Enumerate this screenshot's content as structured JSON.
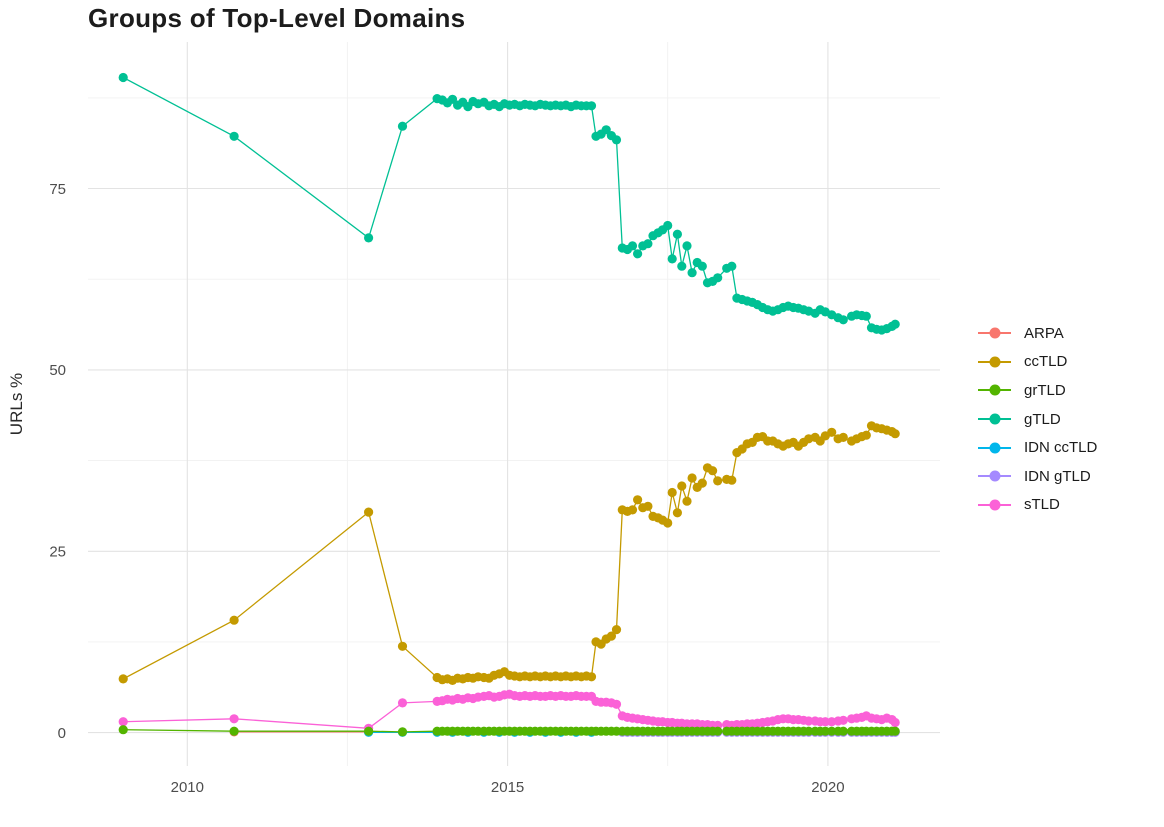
{
  "chart_data": {
    "type": "scatter",
    "title": "Groups of Top-Level Domains",
    "xlabel": "",
    "ylabel": "URLs %",
    "x_ticks": [
      2010,
      2015,
      2020
    ],
    "y_ticks": [
      0,
      25,
      50,
      75
    ],
    "minor_x": [
      2012.5,
      2017.5
    ],
    "minor_y": [
      12.5,
      37.5,
      62.5,
      87.5
    ],
    "xlim": [
      2008.45,
      2021.75
    ],
    "ylim": [
      -4.6,
      95.2
    ],
    "grid": true,
    "legend_position": "right",
    "colors": {
      "grid_major": "#e3e3e3",
      "grid_minor": "#f1f1f1",
      "tick_text": "#4d4d4d",
      "title_text": "#1c1c1c",
      "background": "#ffffff"
    },
    "draw_order": [
      "ARPA",
      "IDN ccTLD",
      "IDN gTLD",
      "ccTLD",
      "gTLD",
      "sTLD",
      "grTLD"
    ],
    "x_main": [
      2009.0,
      2010.73,
      2012.83,
      2013.36,
      2013.9,
      2013.98,
      2014.06,
      2014.14,
      2014.22,
      2014.3,
      2014.38,
      2014.46,
      2014.54,
      2014.63,
      2014.71,
      2014.79,
      2014.87,
      2014.95,
      2015.03,
      2015.11,
      2015.19,
      2015.27,
      2015.35,
      2015.43,
      2015.51,
      2015.59,
      2015.67,
      2015.75,
      2015.83,
      2015.91,
      2015.99,
      2016.07,
      2016.15,
      2016.23,
      2016.31,
      2016.38,
      2016.46,
      2016.54,
      2016.62,
      2016.7,
      2016.79,
      2016.87,
      2016.95,
      2017.03,
      2017.11,
      2017.19,
      2017.27,
      2017.35,
      2017.42,
      2017.5,
      2017.57,
      2017.65,
      2017.72,
      2017.8,
      2017.88,
      2017.96,
      2018.04,
      2018.12,
      2018.2,
      2018.28,
      2018.42,
      2018.5,
      2018.58,
      2018.66,
      2018.74,
      2018.82,
      2018.9,
      2018.98,
      2019.06,
      2019.14,
      2019.22,
      2019.3,
      2019.38,
      2019.46,
      2019.54,
      2019.62,
      2019.7,
      2019.8,
      2019.88,
      2019.96,
      2020.06,
      2020.16,
      2020.24,
      2020.37,
      2020.45,
      2020.53,
      2020.6,
      2020.68,
      2020.76,
      2020.84,
      2020.92,
      2021.0,
      2021.05
    ],
    "series": [
      {
        "name": "ARPA",
        "color": "#F8766D",
        "x": [
          2010.73,
          2012.83
        ],
        "y": [
          0.1,
          0.1
        ]
      },
      {
        "name": "ccTLD",
        "color": "#C49A00",
        "x_slice": [
          0,
          93
        ],
        "y": [
          7.4,
          15.5,
          30.4,
          11.9,
          7.6,
          7.3,
          7.4,
          7.2,
          7.5,
          7.4,
          7.6,
          7.5,
          7.7,
          7.6,
          7.5,
          7.9,
          8.1,
          8.4,
          7.9,
          7.8,
          7.7,
          7.8,
          7.7,
          7.8,
          7.7,
          7.8,
          7.7,
          7.8,
          7.7,
          7.8,
          7.7,
          7.8,
          7.7,
          7.8,
          7.7,
          12.5,
          12.2,
          12.9,
          13.3,
          14.2,
          30.7,
          30.5,
          30.7,
          32.1,
          31.0,
          31.2,
          29.8,
          29.6,
          29.3,
          28.9,
          33.1,
          30.3,
          34.0,
          31.9,
          35.1,
          33.8,
          34.4,
          36.5,
          36.1,
          34.7,
          34.9,
          34.8,
          38.6,
          39.1,
          39.8,
          40.0,
          40.7,
          40.8,
          40.2,
          40.2,
          39.8,
          39.5,
          39.8,
          40.0,
          39.5,
          40.0,
          40.5,
          40.7,
          40.2,
          40.9,
          41.4,
          40.5,
          40.7,
          40.2,
          40.5,
          40.8,
          41.0,
          42.3,
          42.0,
          41.9,
          41.7,
          41.5,
          41.2
        ]
      },
      {
        "name": "grTLD",
        "color": "#53B400",
        "x_slice": [
          0,
          93
        ],
        "y": [
          0.4,
          0.2,
          0.2,
          0.1,
          0.2,
          0.2,
          0.2,
          0.2,
          0.2,
          0.2,
          0.2,
          0.2,
          0.2,
          0.2,
          0.2,
          0.2,
          0.2,
          0.2,
          0.2,
          0.2,
          0.2,
          0.2,
          0.2,
          0.2,
          0.2,
          0.2,
          0.2,
          0.2,
          0.2,
          0.2,
          0.2,
          0.2,
          0.2,
          0.2,
          0.2,
          0.2,
          0.2,
          0.2,
          0.2,
          0.2,
          0.2,
          0.2,
          0.2,
          0.2,
          0.2,
          0.2,
          0.2,
          0.2,
          0.2,
          0.2,
          0.2,
          0.2,
          0.2,
          0.2,
          0.2,
          0.2,
          0.2,
          0.2,
          0.2,
          0.2,
          0.2,
          0.2,
          0.2,
          0.2,
          0.2,
          0.2,
          0.2,
          0.2,
          0.2,
          0.2,
          0.2,
          0.2,
          0.2,
          0.2,
          0.2,
          0.2,
          0.2,
          0.2,
          0.2,
          0.2,
          0.2,
          0.2,
          0.2,
          0.2,
          0.2,
          0.2,
          0.2,
          0.2,
          0.2,
          0.2,
          0.2,
          0.2,
          0.2
        ]
      },
      {
        "name": "gTLD",
        "color": "#00C094",
        "x_slice": [
          0,
          93
        ],
        "y": [
          90.3,
          82.2,
          68.2,
          83.6,
          87.4,
          87.2,
          86.8,
          87.3,
          86.5,
          86.9,
          86.3,
          87.0,
          86.7,
          86.9,
          86.4,
          86.6,
          86.3,
          86.7,
          86.5,
          86.6,
          86.4,
          86.6,
          86.5,
          86.4,
          86.6,
          86.5,
          86.4,
          86.5,
          86.4,
          86.5,
          86.3,
          86.5,
          86.4,
          86.4,
          86.4,
          82.2,
          82.5,
          83.1,
          82.3,
          81.7,
          66.8,
          66.6,
          67.1,
          66.0,
          67.1,
          67.4,
          68.5,
          68.9,
          69.3,
          69.9,
          65.3,
          68.7,
          64.3,
          67.1,
          63.4,
          64.8,
          64.3,
          62.0,
          62.2,
          62.7,
          64.0,
          64.3,
          59.9,
          59.7,
          59.5,
          59.3,
          59.0,
          58.6,
          58.3,
          58.1,
          58.3,
          58.6,
          58.8,
          58.6,
          58.5,
          58.3,
          58.1,
          57.8,
          58.3,
          58.0,
          57.6,
          57.2,
          56.9,
          57.4,
          57.6,
          57.5,
          57.4,
          55.8,
          55.6,
          55.5,
          55.7,
          56.0,
          56.3
        ]
      },
      {
        "name": "IDN ccTLD",
        "color": "#00B6EB",
        "x": [
          2012.83,
          2013.36,
          2013.9,
          2014.14,
          2014.38,
          2014.63,
          2014.87,
          2015.11,
          2015.35,
          2015.59,
          2015.83,
          2016.07,
          2016.31
        ],
        "y_fill": 0.05
      },
      {
        "name": "IDN gTLD",
        "color": "#A58AFF",
        "x_slice": [
          40,
          93
        ],
        "y_fill": 0.05
      },
      {
        "name": "sTLD",
        "color": "#FB61D7",
        "x_slice": [
          0,
          93
        ],
        "y": [
          1.5,
          1.9,
          0.6,
          4.1,
          4.3,
          4.4,
          4.6,
          4.5,
          4.7,
          4.6,
          4.8,
          4.7,
          4.9,
          5.0,
          5.1,
          4.9,
          5.0,
          5.2,
          5.3,
          5.1,
          5.0,
          5.1,
          5.0,
          5.1,
          5.0,
          5.0,
          5.1,
          5.0,
          5.1,
          5.0,
          5.0,
          5.1,
          5.0,
          5.0,
          5.0,
          4.3,
          4.2,
          4.2,
          4.1,
          3.9,
          2.3,
          2.1,
          2.0,
          1.9,
          1.8,
          1.7,
          1.6,
          1.5,
          1.5,
          1.4,
          1.4,
          1.3,
          1.3,
          1.2,
          1.2,
          1.2,
          1.1,
          1.1,
          1.0,
          1.0,
          1.1,
          1.0,
          1.1,
          1.1,
          1.2,
          1.2,
          1.3,
          1.4,
          1.5,
          1.6,
          1.8,
          1.9,
          1.9,
          1.8,
          1.8,
          1.7,
          1.6,
          1.6,
          1.5,
          1.5,
          1.5,
          1.6,
          1.7,
          1.9,
          2.0,
          2.1,
          2.3,
          2.0,
          1.9,
          1.8,
          2.0,
          1.8,
          1.4
        ]
      }
    ]
  }
}
